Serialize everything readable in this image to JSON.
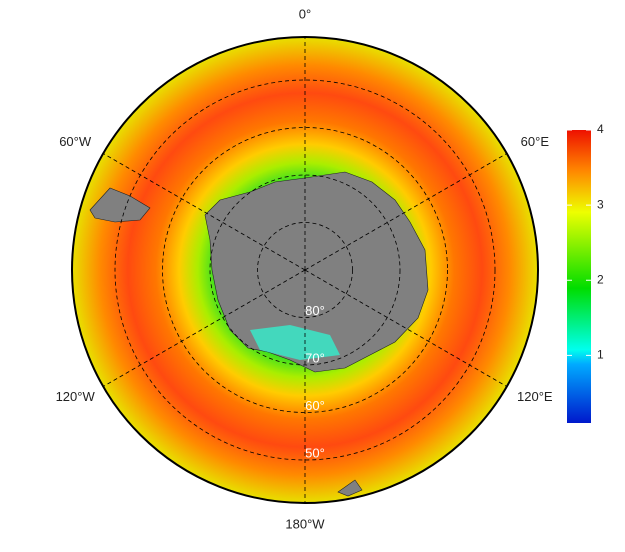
{
  "map": {
    "longitudes": [
      {
        "value": 0,
        "label": "0°"
      },
      {
        "value": 60,
        "label": "60°E"
      },
      {
        "value": 120,
        "label": "120°E"
      },
      {
        "value": 180,
        "label": "180°W"
      },
      {
        "value": -120,
        "label": "120°W"
      },
      {
        "value": -60,
        "label": "60°W"
      }
    ],
    "latitudes": [
      {
        "value": 80,
        "label": "80°"
      },
      {
        "value": 70,
        "label": "70°"
      },
      {
        "value": 60,
        "label": "60°"
      },
      {
        "value": 50,
        "label": "50°"
      }
    ],
    "colorbar": {
      "lim": [
        0.1,
        4
      ],
      "ticks": [
        1,
        2,
        3,
        4
      ]
    }
  }
}
